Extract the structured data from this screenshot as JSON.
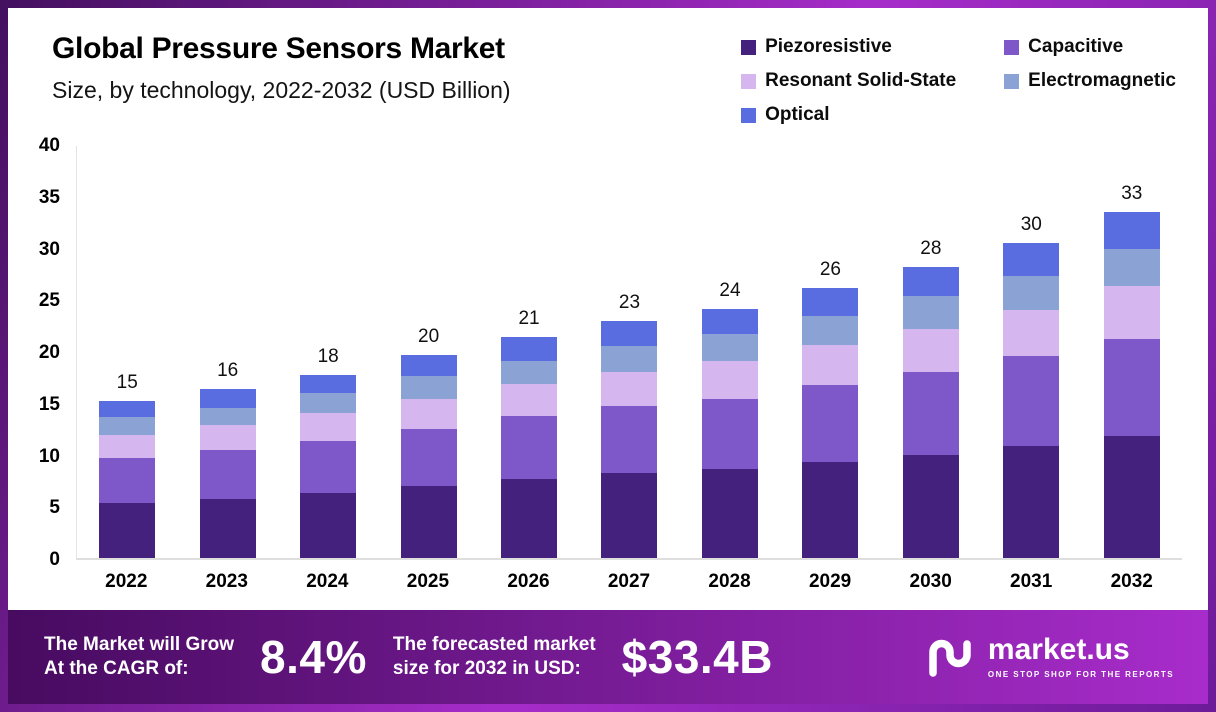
{
  "header": {
    "title": "Global Pressure Sensors Market",
    "subtitle": "Size, by technology, 2022-2032 (USD Billion)"
  },
  "legend": [
    {
      "label": "Piezoresistive",
      "color": "#45217e"
    },
    {
      "label": "Capacitive",
      "color": "#7e57c8"
    },
    {
      "label": "Resonant Solid-State",
      "color": "#d5b6ee"
    },
    {
      "label": "Electromagnetic",
      "color": "#8aa2d4"
    },
    {
      "label": "Optical",
      "color": "#5a6de0"
    }
  ],
  "chart_data": {
    "type": "bar",
    "stacked": true,
    "title": "Global Pressure Sensors Market",
    "subtitle": "Size, by technology, 2022-2032 (USD Billion)",
    "xlabel": "",
    "ylabel": "",
    "ylim": [
      0,
      40
    ],
    "yticks": [
      0,
      5,
      10,
      15,
      20,
      25,
      30,
      35,
      40
    ],
    "grid": false,
    "legend_position": "top-right",
    "categories": [
      "2022",
      "2023",
      "2024",
      "2025",
      "2026",
      "2027",
      "2028",
      "2029",
      "2030",
      "2031",
      "2032"
    ],
    "totals": [
      15,
      16,
      18,
      20,
      21,
      23,
      24,
      26,
      28,
      30,
      33
    ],
    "series": [
      {
        "name": "Piezoresistive",
        "values": [
          5.3,
          5.7,
          6.3,
          7.0,
          7.6,
          8.2,
          8.6,
          9.3,
          10.0,
          10.8,
          11.8
        ]
      },
      {
        "name": "Capacitive",
        "values": [
          4.4,
          4.7,
          5.0,
          5.5,
          6.1,
          6.5,
          6.8,
          7.4,
          8.0,
          8.7,
          9.4
        ]
      },
      {
        "name": "Resonant Solid-State",
        "values": [
          2.2,
          2.5,
          2.7,
          2.9,
          3.1,
          3.3,
          3.6,
          3.9,
          4.1,
          4.5,
          5.1
        ]
      },
      {
        "name": "Electromagnetic",
        "values": [
          1.7,
          1.6,
          1.9,
          2.2,
          2.2,
          2.5,
          2.6,
          2.8,
          3.2,
          3.3,
          3.6
        ]
      },
      {
        "name": "Optical",
        "values": [
          1.6,
          1.8,
          1.8,
          2.0,
          2.4,
          2.4,
          2.5,
          2.7,
          2.8,
          3.1,
          3.5
        ]
      }
    ]
  },
  "footer": {
    "cagr_label_line1": "The Market will Grow",
    "cagr_label_line2": "At the CAGR of:",
    "cagr_value": "8.4%",
    "forecast_label_line1": "The forecasted market",
    "forecast_label_line2": "size for 2032 in USD:",
    "forecast_value": "$33.4B",
    "brand_name": "market.us",
    "brand_tagline": "ONE STOP SHOP FOR THE REPORTS"
  },
  "colors": {
    "frame_start": "#43105f",
    "frame_mid": "#a62cc9",
    "frame_end": "#6d1b9a",
    "banner_start": "#470b60",
    "banner_end": "#a82ccb",
    "text": "#111111"
  }
}
